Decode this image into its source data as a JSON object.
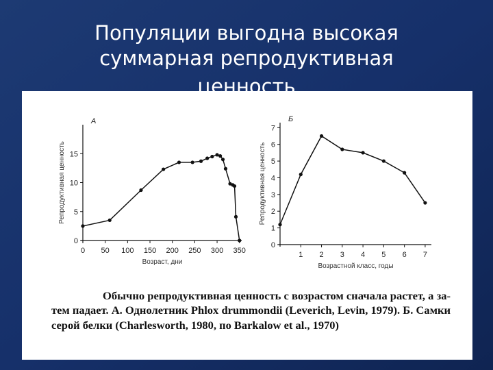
{
  "slide_title": [
    "Популяции выгодна высокая",
    "суммарная репродуктивная",
    "ценность"
  ],
  "caption": [
    "Обычно репродуктивная ценность с возрастом сначала растет, а за-",
    "тем падает. А. Однолетник Phlox drummondii (Leverich, Levin, 1979). Б. Самки",
    "серой белки (Charlesworth, 1980, по Barkalow et al., 1970)"
  ],
  "chart_data": [
    {
      "type": "line",
      "panel_label": "А",
      "x_label": "Возраст, дни",
      "y_label": "Репродуктивная ценность",
      "x": [
        0,
        60,
        130,
        180,
        215,
        245,
        264,
        278,
        289,
        300,
        307,
        313,
        319,
        329,
        335,
        339,
        342,
        350
      ],
      "values": [
        2.5,
        3.5,
        8.7,
        12.3,
        13.5,
        13.5,
        13.7,
        14.2,
        14.5,
        14.8,
        14.6,
        14.0,
        12.4,
        9.8,
        9.6,
        9.4,
        4.1,
        0
      ],
      "color": "#111111",
      "xlim": [
        0,
        355
      ],
      "ylim": [
        0,
        20
      ],
      "xticks": [
        0,
        50,
        100,
        150,
        200,
        250,
        300,
        350
      ],
      "yticks": [
        0,
        5,
        10,
        15
      ]
    },
    {
      "type": "line",
      "panel_label": "Б",
      "x_label": "Возрастной класс, годы",
      "y_label": "Репродуктивная ценность",
      "x": [
        0,
        1,
        2,
        3,
        4,
        5,
        6,
        7
      ],
      "values": [
        1.2,
        4.2,
        6.5,
        5.7,
        5.5,
        5.0,
        4.3,
        2.5
      ],
      "color": "#111111",
      "xlim": [
        0,
        7.3
      ],
      "ylim": [
        0,
        7.3
      ],
      "xticks": [
        1,
        2,
        3,
        4,
        5,
        6,
        7
      ],
      "yticks": [
        0,
        1,
        2,
        3,
        4,
        5,
        6,
        7
      ]
    }
  ]
}
